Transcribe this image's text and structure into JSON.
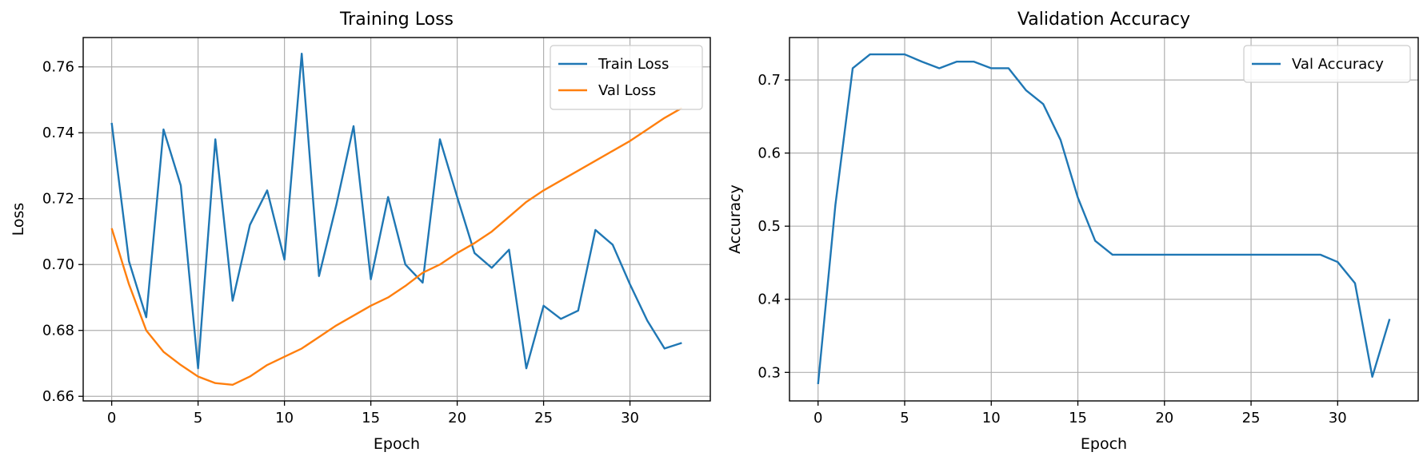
{
  "chart_data": [
    {
      "type": "line",
      "title": "Training Loss",
      "xlabel": "Epoch",
      "ylabel": "Loss",
      "xlim": [
        -1.65,
        34.65
      ],
      "ylim": [
        0.6586,
        0.7689
      ],
      "xticks": [
        0,
        5,
        10,
        15,
        20,
        25,
        30
      ],
      "yticks": [
        0.66,
        0.68,
        0.7,
        0.72,
        0.74,
        0.76
      ],
      "ytick_labels": [
        "0.66",
        "0.68",
        "0.70",
        "0.72",
        "0.74",
        "0.76"
      ],
      "grid": true,
      "legend_position": "upper right",
      "x": [
        0,
        1,
        2,
        3,
        4,
        5,
        6,
        7,
        8,
        9,
        10,
        11,
        12,
        13,
        14,
        15,
        16,
        17,
        18,
        19,
        20,
        21,
        22,
        23,
        24,
        25,
        26,
        27,
        28,
        29,
        30,
        31,
        32,
        33
      ],
      "series": [
        {
          "name": "Train Loss",
          "color": "#1f77b4",
          "values": [
            0.743,
            0.701,
            0.684,
            0.741,
            0.724,
            0.6685,
            0.738,
            0.689,
            0.712,
            0.7225,
            0.7015,
            0.764,
            0.6965,
            0.718,
            0.742,
            0.6955,
            0.7205,
            0.7,
            0.6945,
            0.738,
            0.7205,
            0.7035,
            0.699,
            0.7045,
            0.6685,
            0.6875,
            0.6835,
            0.686,
            0.7105,
            0.706,
            0.694,
            0.683,
            0.6745,
            0.6762
          ]
        },
        {
          "name": "Val Loss",
          "color": "#ff7f0e",
          "values": [
            0.711,
            0.694,
            0.68,
            0.6735,
            0.6695,
            0.666,
            0.664,
            0.6635,
            0.666,
            0.6695,
            0.672,
            0.6745,
            0.678,
            0.6815,
            0.6845,
            0.6875,
            0.69,
            0.6935,
            0.6975,
            0.7,
            0.7035,
            0.7065,
            0.71,
            0.7145,
            0.719,
            0.7225,
            0.7255,
            0.7285,
            0.7315,
            0.7345,
            0.7375,
            0.741,
            0.7445,
            0.7475
          ]
        }
      ]
    },
    {
      "type": "line",
      "title": "Validation Accuracy",
      "xlabel": "Epoch",
      "ylabel": "Accuracy",
      "xlim": [
        -1.65,
        34.65
      ],
      "ylim": [
        0.261,
        0.758
      ],
      "xticks": [
        0,
        5,
        10,
        15,
        20,
        25,
        30
      ],
      "yticks": [
        0.3,
        0.4,
        0.5,
        0.6,
        0.7
      ],
      "ytick_labels": [
        "0.3",
        "0.4",
        "0.5",
        "0.6",
        "0.7"
      ],
      "grid": true,
      "legend_position": "upper right",
      "x": [
        0,
        1,
        2,
        3,
        4,
        5,
        6,
        7,
        8,
        9,
        10,
        11,
        12,
        13,
        14,
        15,
        16,
        17,
        18,
        19,
        20,
        21,
        22,
        23,
        24,
        25,
        26,
        27,
        28,
        29,
        30,
        31,
        32,
        33
      ],
      "series": [
        {
          "name": "Val Accuracy",
          "color": "#1f77b4",
          "values": [
            0.284,
            0.529,
            0.716,
            0.735,
            0.735,
            0.735,
            0.725,
            0.716,
            0.725,
            0.725,
            0.716,
            0.716,
            0.686,
            0.667,
            0.618,
            0.539,
            0.48,
            0.461,
            0.461,
            0.461,
            0.461,
            0.461,
            0.461,
            0.461,
            0.461,
            0.461,
            0.461,
            0.461,
            0.461,
            0.461,
            0.451,
            0.422,
            0.294,
            0.373
          ]
        }
      ]
    }
  ]
}
